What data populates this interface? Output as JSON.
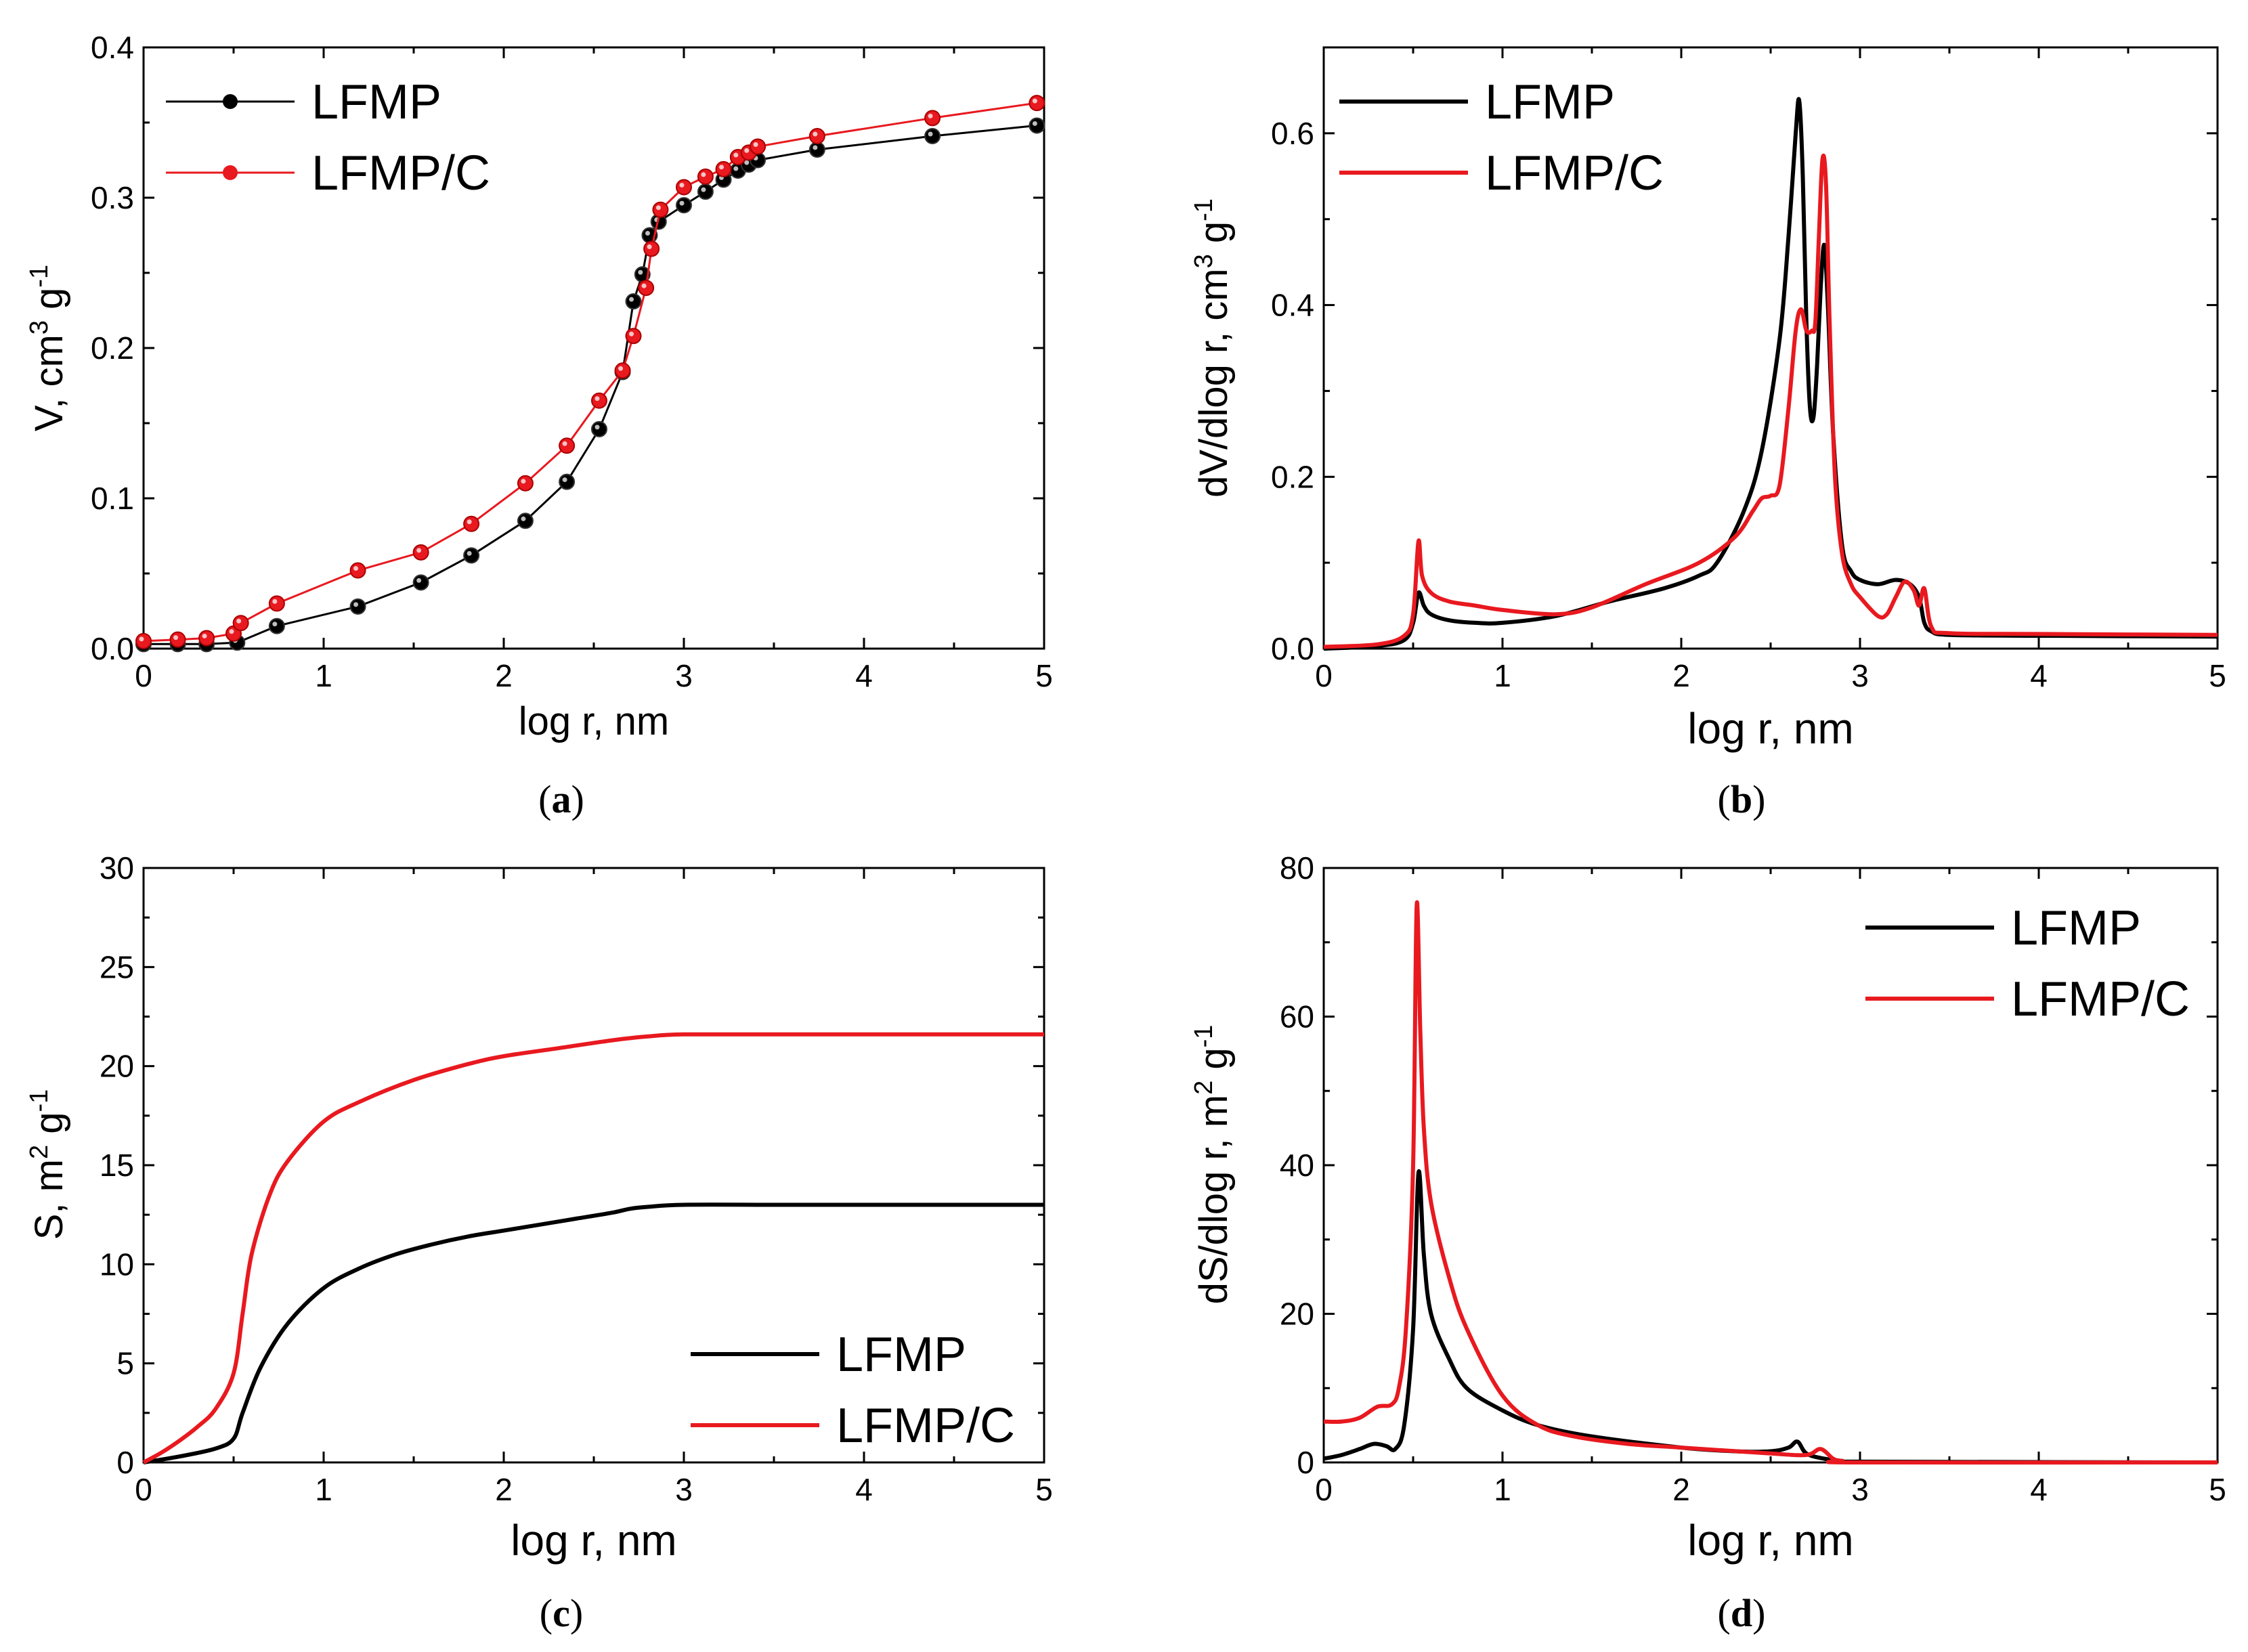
{
  "figure": {
    "domain": "Chart"
  },
  "colors": {
    "LFMP": "#000000",
    "LFMP/C": "#e8191f"
  },
  "chart_data": [
    {
      "id": "a",
      "panel_label": "a",
      "type": "line",
      "markers": true,
      "xlabel": "log r, nm",
      "ylabel": "V, cm3 g-1",
      "ylabel_parts": [
        "V, cm",
        "3",
        " g",
        "-1"
      ],
      "xlim": [
        0,
        5
      ],
      "ylim": [
        0,
        0.4
      ],
      "xticks": [
        0,
        1,
        2,
        3,
        4,
        5
      ],
      "xtick_labels": [
        "0",
        "1",
        "2",
        "3",
        "4",
        "5"
      ],
      "yticks": [
        0,
        0.1,
        0.2,
        0.3,
        0.4
      ],
      "ytick_labels": [
        "0.0",
        "0.1",
        "0.2",
        "0.3",
        "0.4"
      ],
      "legend_position": "top-left",
      "series": [
        {
          "name": "LFMP",
          "color": "#000000",
          "x": [
            0.0,
            0.19,
            0.35,
            0.52,
            0.74,
            1.19,
            1.54,
            1.82,
            2.12,
            2.35,
            2.53,
            2.66,
            2.72,
            2.77,
            2.81,
            2.86,
            3.0,
            3.12,
            3.22,
            3.3,
            3.36,
            3.41,
            3.74,
            4.38,
            4.96
          ],
          "y": [
            0.003,
            0.003,
            0.003,
            0.004,
            0.015,
            0.028,
            0.044,
            0.062,
            0.085,
            0.111,
            0.146,
            0.184,
            0.231,
            0.249,
            0.275,
            0.284,
            0.295,
            0.304,
            0.312,
            0.318,
            0.322,
            0.325,
            0.332,
            0.341,
            0.348
          ]
        },
        {
          "name": "LFMP/C",
          "color": "#e8191f",
          "x": [
            0.0,
            0.19,
            0.35,
            0.5,
            0.54,
            0.74,
            1.19,
            1.54,
            1.82,
            2.12,
            2.35,
            2.53,
            2.66,
            2.72,
            2.79,
            2.82,
            2.87,
            3.0,
            3.12,
            3.22,
            3.3,
            3.36,
            3.41,
            3.74,
            4.38,
            4.96
          ],
          "y": [
            0.005,
            0.006,
            0.007,
            0.01,
            0.017,
            0.03,
            0.052,
            0.064,
            0.083,
            0.11,
            0.135,
            0.165,
            0.185,
            0.208,
            0.24,
            0.266,
            0.292,
            0.307,
            0.314,
            0.319,
            0.327,
            0.33,
            0.334,
            0.341,
            0.353,
            0.363
          ]
        }
      ]
    },
    {
      "id": "b",
      "panel_label": "b",
      "type": "line",
      "markers": false,
      "xlabel": "log r, nm",
      "ylabel": "dV/dlog r, cm3 g-1",
      "ylabel_parts": [
        "dV/dlog r, cm",
        "3",
        " g",
        "-1"
      ],
      "xlim": [
        0,
        5
      ],
      "ylim": [
        0,
        0.7
      ],
      "xticks": [
        0,
        1,
        2,
        3,
        4,
        5
      ],
      "xtick_labels": [
        "0",
        "1",
        "2",
        "3",
        "4",
        "5"
      ],
      "yticks": [
        0,
        0.2,
        0.4,
        0.6
      ],
      "ytick_labels": [
        "0.0",
        "0.2",
        "0.4",
        "0.6"
      ],
      "legend_position": "top-left",
      "series": [
        {
          "name": "LFMP",
          "color": "#000000",
          "x": [
            0,
            0.3,
            0.45,
            0.5,
            0.53,
            0.56,
            0.6,
            0.7,
            0.85,
            1.0,
            1.3,
            1.6,
            1.9,
            2.1,
            2.2,
            2.35,
            2.45,
            2.55,
            2.6,
            2.64,
            2.66,
            2.68,
            2.7,
            2.72,
            2.74,
            2.76,
            2.78,
            2.8,
            2.82,
            2.85,
            2.9,
            2.95,
            3.0,
            3.1,
            3.2,
            3.28,
            3.33,
            3.36,
            3.4,
            3.5,
            4.0,
            5.0
          ],
          "y": [
            0,
            0.003,
            0.01,
            0.03,
            0.065,
            0.05,
            0.04,
            0.033,
            0.03,
            0.03,
            0.038,
            0.055,
            0.07,
            0.085,
            0.1,
            0.16,
            0.23,
            0.36,
            0.48,
            0.6,
            0.638,
            0.55,
            0.38,
            0.28,
            0.27,
            0.33,
            0.42,
            0.47,
            0.4,
            0.25,
            0.12,
            0.09,
            0.08,
            0.075,
            0.08,
            0.075,
            0.06,
            0.03,
            0.02,
            0.016,
            0.015,
            0.014
          ]
        },
        {
          "name": "LFMP/C",
          "color": "#e8191f",
          "x": [
            0,
            0.3,
            0.45,
            0.5,
            0.53,
            0.55,
            0.6,
            0.7,
            0.85,
            1.0,
            1.3,
            1.5,
            1.8,
            2.1,
            2.3,
            2.4,
            2.45,
            2.5,
            2.55,
            2.6,
            2.64,
            2.67,
            2.7,
            2.73,
            2.75,
            2.77,
            2.79,
            2.81,
            2.83,
            2.86,
            2.9,
            2.95,
            3.0,
            3.1,
            3.15,
            3.2,
            3.25,
            3.3,
            3.33,
            3.36,
            3.4,
            3.5,
            4.0,
            5.0
          ],
          "y": [
            0.002,
            0.005,
            0.015,
            0.04,
            0.125,
            0.085,
            0.065,
            0.055,
            0.05,
            0.045,
            0.04,
            0.048,
            0.075,
            0.1,
            0.13,
            0.16,
            0.175,
            0.178,
            0.19,
            0.28,
            0.37,
            0.395,
            0.37,
            0.37,
            0.38,
            0.48,
            0.57,
            0.54,
            0.38,
            0.2,
            0.11,
            0.075,
            0.06,
            0.038,
            0.04,
            0.06,
            0.078,
            0.068,
            0.05,
            0.07,
            0.025,
            0.018,
            0.017,
            0.016
          ]
        }
      ]
    },
    {
      "id": "c",
      "panel_label": "c",
      "type": "line",
      "markers": false,
      "xlabel": "log r, nm",
      "ylabel": "S, m2 g-1",
      "ylabel_parts": [
        "S, m",
        "2",
        " g",
        "-1"
      ],
      "xlim": [
        0,
        5
      ],
      "ylim": [
        0,
        30
      ],
      "xticks": [
        0,
        1,
        2,
        3,
        4,
        5
      ],
      "xtick_labels": [
        "0",
        "1",
        "2",
        "3",
        "4",
        "5"
      ],
      "yticks": [
        0,
        5,
        10,
        15,
        20,
        25,
        30
      ],
      "ytick_labels": [
        "0",
        "5",
        "10",
        "15",
        "20",
        "25",
        "30"
      ],
      "legend_position": "bottom-right",
      "series": [
        {
          "name": "LFMP",
          "color": "#000000",
          "x": [
            0,
            0.2,
            0.4,
            0.5,
            0.55,
            0.65,
            0.8,
            1.0,
            1.2,
            1.4,
            1.6,
            1.8,
            2.0,
            2.2,
            2.4,
            2.6,
            2.7,
            2.8,
            3.0,
            3.5,
            4.0,
            5.0
          ],
          "y": [
            0,
            0.3,
            0.7,
            1.2,
            2.5,
            4.8,
            7.0,
            8.8,
            9.8,
            10.5,
            11.0,
            11.4,
            11.7,
            12.0,
            12.3,
            12.6,
            12.8,
            12.9,
            13.0,
            13.0,
            13.0,
            13.0
          ]
        },
        {
          "name": "LFMP/C",
          "color": "#e8191f",
          "x": [
            0,
            0.1,
            0.2,
            0.3,
            0.4,
            0.5,
            0.55,
            0.6,
            0.7,
            0.8,
            1.0,
            1.2,
            1.5,
            1.8,
            2.0,
            2.3,
            2.6,
            2.8,
            3.0,
            3.5,
            4.0,
            5.0
          ],
          "y": [
            0,
            0.5,
            1.1,
            1.8,
            2.7,
            4.5,
            7.5,
            10.5,
            13.5,
            15.2,
            17.2,
            18.2,
            19.3,
            20.1,
            20.5,
            20.9,
            21.3,
            21.5,
            21.6,
            21.6,
            21.6,
            21.6
          ]
        }
      ]
    },
    {
      "id": "d",
      "panel_label": "d",
      "type": "line",
      "markers": false,
      "xlabel": "log r, nm",
      "ylabel": "dS/dlog r, m2 g-1",
      "ylabel_parts": [
        "dS/dlog r, m",
        "2",
        " g",
        "-1"
      ],
      "xlim": [
        0,
        5
      ],
      "ylim": [
        0,
        80
      ],
      "xticks": [
        0,
        1,
        2,
        3,
        4,
        5
      ],
      "xtick_labels": [
        "0",
        "1",
        "2",
        "3",
        "4",
        "5"
      ],
      "yticks": [
        0,
        20,
        40,
        60,
        80
      ],
      "ytick_labels": [
        "0",
        "20",
        "40",
        "60",
        "80"
      ],
      "legend_position": "top-right",
      "series": [
        {
          "name": "LFMP",
          "color": "#000000",
          "x": [
            0,
            0.1,
            0.2,
            0.28,
            0.35,
            0.4,
            0.45,
            0.5,
            0.53,
            0.56,
            0.6,
            0.7,
            0.8,
            1.0,
            1.2,
            1.5,
            2.0,
            2.3,
            2.5,
            2.6,
            2.65,
            2.7,
            2.8,
            2.9,
            3.0,
            5.0
          ],
          "y": [
            0.5,
            1,
            1.8,
            2.5,
            2.2,
            1.8,
            5,
            18,
            39,
            28,
            20,
            14,
            10,
            7,
            5,
            3.5,
            2,
            1.5,
            1.5,
            2,
            2.8,
            1.2,
            0.5,
            0.2,
            0.1,
            0
          ]
        },
        {
          "name": "LFMP/C",
          "color": "#e8191f",
          "x": [
            0,
            0.1,
            0.2,
            0.3,
            0.38,
            0.42,
            0.46,
            0.5,
            0.52,
            0.54,
            0.56,
            0.6,
            0.7,
            0.8,
            1.0,
            1.2,
            1.4,
            1.7,
            2.0,
            2.5,
            2.7,
            2.78,
            2.85,
            2.9,
            3.0,
            5.0
          ],
          "y": [
            5.5,
            5.5,
            6,
            7.5,
            7.8,
            10,
            18,
            40,
            75,
            58,
            45,
            35,
            25,
            18,
            9,
            5,
            3.5,
            2.5,
            2,
            1.2,
            1,
            1.8,
            0.5,
            0.2,
            0,
            0
          ]
        }
      ]
    }
  ]
}
